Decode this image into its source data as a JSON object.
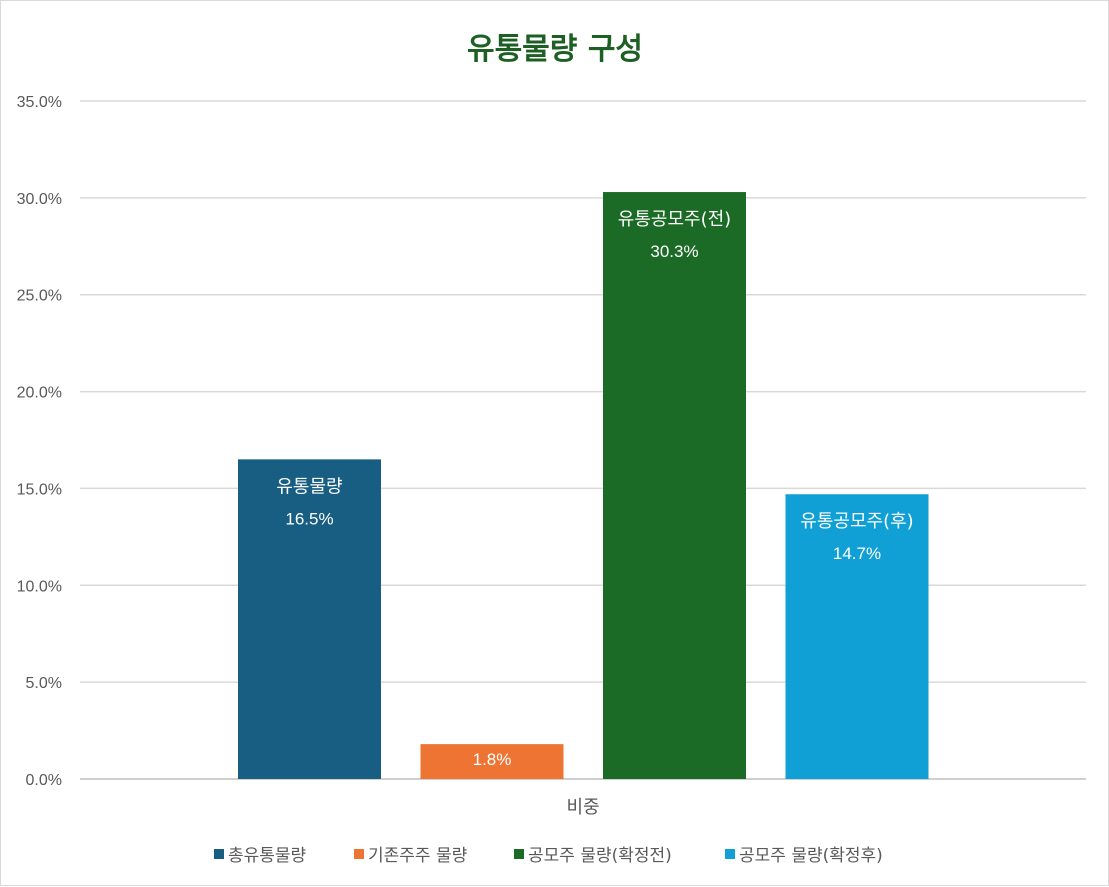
{
  "chart_data": {
    "type": "bar",
    "title": "유통물량 구성",
    "categories": [
      "비중"
    ],
    "ylim": [
      0,
      35
    ],
    "y_ticks": [
      "35.0%",
      "30.0%",
      "25.0%",
      "20.0%",
      "15.0%",
      "10.0%",
      "5.0%",
      "0.0%"
    ],
    "y_tick_values": [
      35,
      30,
      25,
      20,
      15,
      10,
      5,
      0
    ],
    "grid": true,
    "legend_position": "bottom",
    "series": [
      {
        "name": "총유통물량",
        "values": [
          16.5
        ],
        "color": "#175e82",
        "label_name": "유통물량",
        "label_value": "16.5%"
      },
      {
        "name": "기존주주 물량",
        "values": [
          1.8
        ],
        "color": "#ed7433",
        "label_name": "",
        "label_value": "1.8%"
      },
      {
        "name": "공모주 물량(확정전)",
        "values": [
          30.3
        ],
        "color": "#1b6b27",
        "label_name": "유통공모주(전)",
        "label_value": "30.3%"
      },
      {
        "name": "공모주 물량(확정후)",
        "values": [
          14.7
        ],
        "color": "#10a0d6",
        "label_name": "유통공모주(후)",
        "label_value": "14.7%"
      }
    ]
  }
}
